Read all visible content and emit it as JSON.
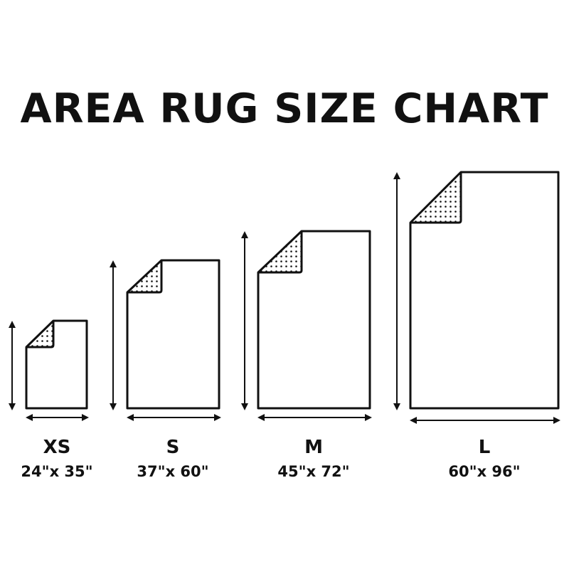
{
  "title": "AREA RUG SIZE CHART",
  "colors": {
    "ink": "#111111",
    "background": "#ffffff"
  },
  "sizes": [
    {
      "label": "XS",
      "dimensions": "24\"x 35\""
    },
    {
      "label": "S",
      "dimensions": "37\"x 60\""
    },
    {
      "label": "M",
      "dimensions": "45\"x 72\""
    },
    {
      "label": "L",
      "dimensions": "60\"x 96\""
    }
  ]
}
